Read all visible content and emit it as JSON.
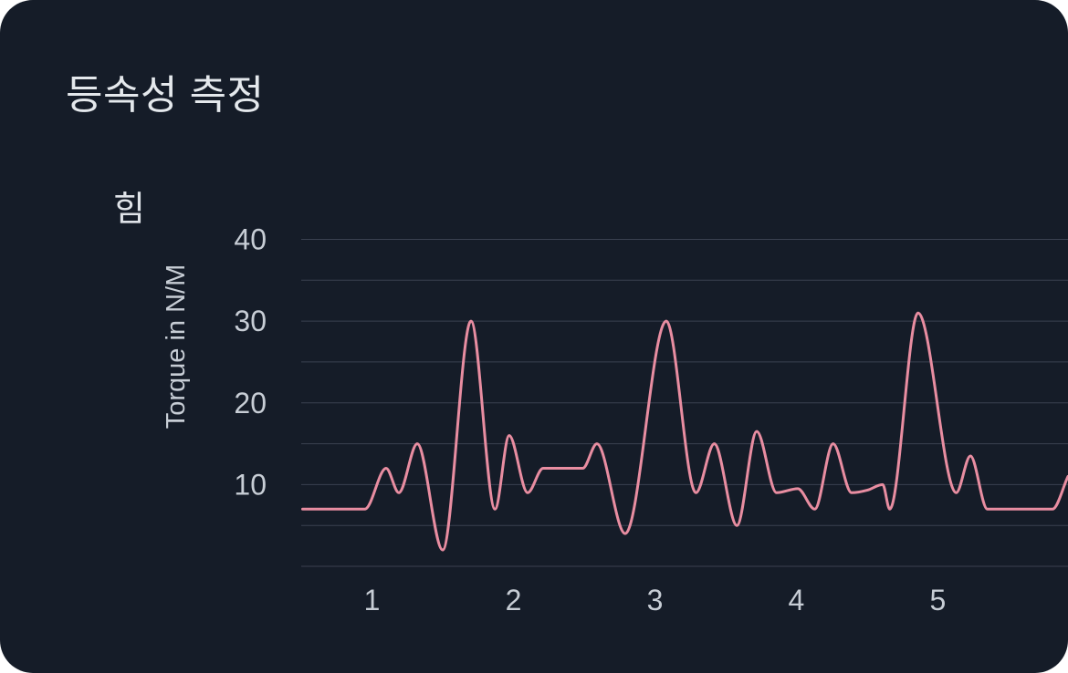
{
  "header": {
    "title": "등속성 측정"
  },
  "theme": {
    "card_bg": "#151c28",
    "title_color": "#e4e8ec",
    "subtitle_color": "#dfe3e8",
    "tick_color": "#c7cdd5",
    "grid_color": "#3a4150",
    "line_color": "#e88da1"
  },
  "chart_data": {
    "type": "line",
    "title": "힘",
    "xlabel": "",
    "ylabel": "Torque in N/M",
    "legend": "none",
    "grid": "horizontal-only",
    "xlim": [
      0.5,
      5.92
    ],
    "ylim": [
      0,
      40
    ],
    "xticks": [
      1,
      2,
      3,
      4,
      5
    ],
    "yticks": [
      10,
      20,
      30,
      40
    ],
    "ygrid_values": [
      0,
      5,
      10,
      15,
      20,
      25,
      30,
      35,
      40
    ],
    "series": [
      {
        "name": "힘",
        "color": "#e88da1",
        "points": [
          [
            0.51,
            7
          ],
          [
            0.65,
            7
          ],
          [
            0.8,
            7
          ],
          [
            0.95,
            7
          ],
          [
            1.1,
            12
          ],
          [
            1.19,
            9
          ],
          [
            1.32,
            15
          ],
          [
            1.5,
            2
          ],
          [
            1.7,
            30
          ],
          [
            1.87,
            7
          ],
          [
            1.97,
            16
          ],
          [
            2.1,
            9
          ],
          [
            2.21,
            12
          ],
          [
            2.35,
            12
          ],
          [
            2.49,
            12
          ],
          [
            2.59,
            15
          ],
          [
            2.79,
            4
          ],
          [
            3.08,
            30
          ],
          [
            3.29,
            9
          ],
          [
            3.42,
            15
          ],
          [
            3.58,
            5
          ],
          [
            3.72,
            16.5
          ],
          [
            3.86,
            9
          ],
          [
            4.01,
            9.5
          ],
          [
            4.13,
            7
          ],
          [
            4.26,
            15
          ],
          [
            4.39,
            9
          ],
          [
            4.5,
            9.3
          ],
          [
            4.61,
            10
          ],
          [
            4.66,
            7
          ],
          [
            4.86,
            31
          ],
          [
            5.13,
            9
          ],
          [
            5.23,
            13.5
          ],
          [
            5.35,
            7
          ],
          [
            5.5,
            7
          ],
          [
            5.65,
            7
          ],
          [
            5.81,
            7
          ],
          [
            5.92,
            11
          ]
        ]
      }
    ]
  }
}
